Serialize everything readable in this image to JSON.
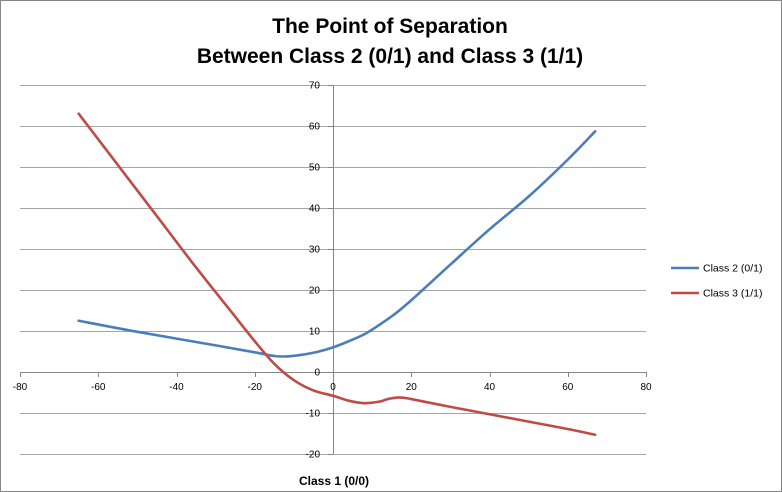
{
  "chart_data": {
    "type": "line",
    "title_lines": [
      "The Point of Separation",
      "Between Class 2 (0/1) and Class 3 (1/1)"
    ],
    "xlabel": "Class 1 (0/0)",
    "ylabel": "",
    "xlim": [
      -80,
      80
    ],
    "ylim": [
      -20,
      70
    ],
    "xticks": [
      -80,
      -60,
      -40,
      -20,
      0,
      20,
      40,
      60,
      80
    ],
    "yticks": [
      -20,
      -10,
      0,
      10,
      20,
      30,
      40,
      50,
      60,
      70
    ],
    "grid": "horizontal major gridlines",
    "legend_position": "right",
    "series": [
      {
        "name": "Class 2 (0/1)",
        "color": "#4a7ebb",
        "points": [
          [
            -65,
            12.5
          ],
          [
            -50,
            9.8
          ],
          [
            -30,
            6.5
          ],
          [
            -20,
            4.8
          ],
          [
            -15,
            3.9
          ],
          [
            -12,
            3.8
          ],
          [
            -8,
            4.2
          ],
          [
            -4,
            4.9
          ],
          [
            0,
            6.0
          ],
          [
            4,
            7.5
          ],
          [
            8,
            9.2
          ],
          [
            12,
            11.6
          ],
          [
            16,
            14.3
          ],
          [
            20,
            17.5
          ],
          [
            30,
            26.2
          ],
          [
            40,
            34.8
          ],
          [
            50,
            42.8
          ],
          [
            60,
            51.8
          ],
          [
            67,
            58.7
          ]
        ]
      },
      {
        "name": "Class 3 (1/1)",
        "color": "#be4b48",
        "points": [
          [
            -65,
            63
          ],
          [
            -55,
            50.5
          ],
          [
            -45,
            38
          ],
          [
            -35,
            25.5
          ],
          [
            -25,
            13.5
          ],
          [
            -20,
            7.5
          ],
          [
            -15,
            2
          ],
          [
            -10,
            -2
          ],
          [
            -5,
            -4.5
          ],
          [
            0,
            -5.8
          ],
          [
            4,
            -7.0
          ],
          [
            8,
            -7.6
          ],
          [
            12,
            -7.2
          ],
          [
            14,
            -6.6
          ],
          [
            17,
            -6.2
          ],
          [
            20,
            -6.6
          ],
          [
            30,
            -8.5
          ],
          [
            40,
            -10.3
          ],
          [
            50,
            -12.1
          ],
          [
            60,
            -13.9
          ],
          [
            67,
            -15.3
          ]
        ]
      }
    ]
  }
}
